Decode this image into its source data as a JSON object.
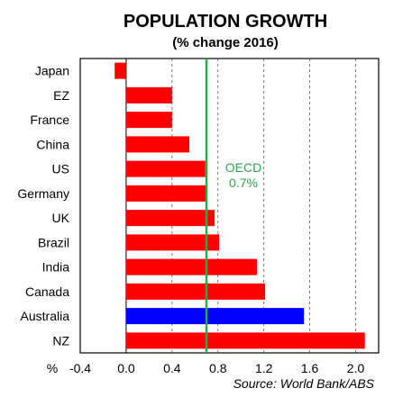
{
  "chart_data": {
    "type": "bar",
    "orientation": "horizontal",
    "title": "POPULATION GROWTH",
    "subtitle": "(% change 2016)",
    "xlabel": "%",
    "source": "Source: World Bank/ABS",
    "xlim": [
      -0.4,
      2.2
    ],
    "xticks": [
      -0.4,
      0.0,
      0.4,
      0.8,
      1.2,
      1.6,
      2.0
    ],
    "tick_labels": [
      "-0.4",
      "0.0",
      "0.4",
      "0.8",
      "1.2",
      "1.6",
      "2.0"
    ],
    "grid": "vertical dashed",
    "categories": [
      "Japan",
      "EZ",
      "France",
      "China",
      "US",
      "Germany",
      "UK",
      "Brazil",
      "India",
      "Canada",
      "Australia",
      "NZ"
    ],
    "values": [
      -0.1,
      0.4,
      0.4,
      0.55,
      0.69,
      0.7,
      0.77,
      0.81,
      1.14,
      1.21,
      1.55,
      2.08
    ],
    "colors": [
      "#ff0000",
      "#ff0000",
      "#ff0000",
      "#ff0000",
      "#ff0000",
      "#ff0000",
      "#ff0000",
      "#ff0000",
      "#ff0000",
      "#ff0000",
      "#0000ff",
      "#ff0000"
    ],
    "reference_line": {
      "value": 0.7,
      "label_line1": "OECD",
      "label_line2": "0.7%",
      "color": "#2aa84a"
    }
  }
}
